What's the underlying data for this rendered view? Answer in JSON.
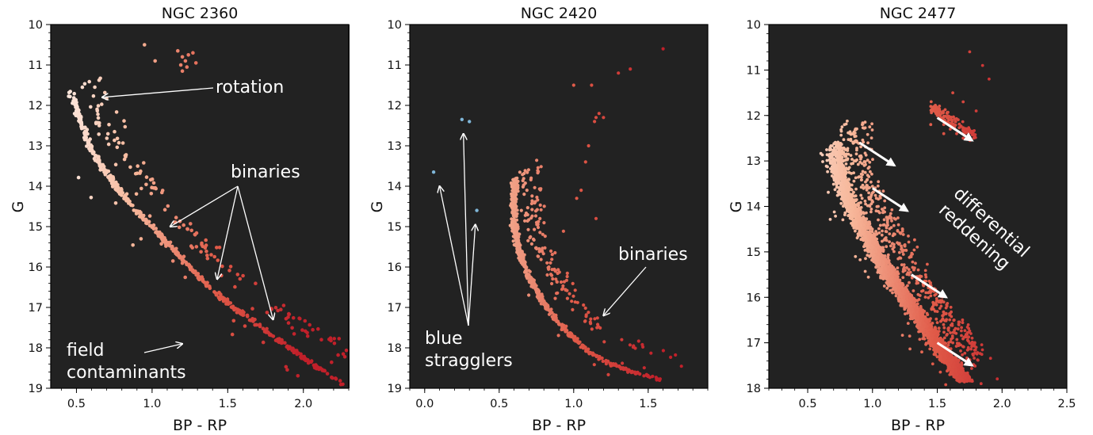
{
  "chart_data": [
    {
      "type": "scatter",
      "title": "NGC 2360",
      "xlabel": "BP - RP",
      "ylabel": "G",
      "xlim": [
        0.33,
        2.3
      ],
      "ylim": [
        19,
        10
      ],
      "xticks": [
        "0.5",
        "1.0",
        "1.5",
        "2.0"
      ],
      "yticks": [
        "10",
        "11",
        "12",
        "13",
        "14",
        "15",
        "16",
        "17",
        "18",
        "19"
      ],
      "background": "#222222",
      "colormap": [
        "#c6dbef",
        "#fdf3ee",
        "#f7b79a",
        "#e05a48",
        "#c1202a"
      ],
      "sequence_points": [
        [
          0.46,
          11.6
        ],
        [
          0.5,
          12.1
        ],
        [
          0.55,
          12.6
        ],
        [
          0.6,
          13.1
        ],
        [
          0.68,
          13.6
        ],
        [
          0.78,
          14.1
        ],
        [
          0.9,
          14.6
        ],
        [
          1.05,
          15.2
        ],
        [
          1.2,
          15.8
        ],
        [
          1.35,
          16.4
        ],
        [
          1.5,
          16.9
        ],
        [
          1.65,
          17.3
        ],
        [
          1.8,
          17.7
        ],
        [
          1.95,
          18.1
        ],
        [
          2.1,
          18.5
        ],
        [
          2.25,
          18.9
        ]
      ],
      "giant_points": [
        [
          1.17,
          10.65
        ],
        [
          1.2,
          10.8
        ],
        [
          1.22,
          10.9
        ],
        [
          1.19,
          11.0
        ],
        [
          1.23,
          11.05
        ],
        [
          1.2,
          11.15
        ],
        [
          1.24,
          10.75
        ],
        [
          1.27,
          10.7
        ],
        [
          1.29,
          10.95
        ],
        [
          0.95,
          10.5
        ],
        [
          1.02,
          10.9
        ]
      ],
      "annotations": [
        {
          "text": "rotation",
          "arrows_to": [
            [
              0.67,
              11.8
            ]
          ]
        },
        {
          "text": "binaries",
          "arrows_to": [
            [
              1.12,
              15.0
            ],
            [
              1.43,
              16.3
            ],
            [
              1.8,
              17.3
            ]
          ]
        },
        {
          "text": "field contaminants",
          "lines": [
            "field",
            "contaminants"
          ],
          "arrows_to": [
            [
              1.2,
              17.9
            ]
          ]
        }
      ]
    },
    {
      "type": "scatter",
      "title": "NGC 2420",
      "xlabel": "BP - RP",
      "ylabel": "G",
      "xlim": [
        -0.1,
        1.9
      ],
      "ylim": [
        19,
        10
      ],
      "xticks": [
        "0.0",
        "0.5",
        "1.0",
        "1.5"
      ],
      "yticks": [
        "10",
        "11",
        "12",
        "13",
        "14",
        "15",
        "16",
        "17",
        "18",
        "19"
      ],
      "background": "#222222",
      "colormap": [
        "#c6dbef",
        "#fdf3ee",
        "#f7b79a",
        "#e05a48",
        "#c1202a"
      ],
      "sequence_points": [
        [
          0.61,
          13.8
        ],
        [
          0.6,
          14.3
        ],
        [
          0.6,
          14.9
        ],
        [
          0.62,
          15.4
        ],
        [
          0.66,
          15.9
        ],
        [
          0.72,
          16.4
        ],
        [
          0.8,
          16.9
        ],
        [
          0.88,
          17.3
        ],
        [
          0.98,
          17.7
        ],
        [
          1.1,
          18.1
        ],
        [
          1.25,
          18.4
        ],
        [
          1.4,
          18.6
        ],
        [
          1.6,
          18.8
        ]
      ],
      "giant_points": [
        [
          1.0,
          11.5
        ],
        [
          1.12,
          11.5
        ],
        [
          1.15,
          12.3
        ],
        [
          1.14,
          12.4
        ],
        [
          1.17,
          12.2
        ],
        [
          1.2,
          12.3
        ],
        [
          1.1,
          13.0
        ],
        [
          1.08,
          13.4
        ],
        [
          1.05,
          14.1
        ],
        [
          1.02,
          14.3
        ],
        [
          1.15,
          14.8
        ],
        [
          1.38,
          11.1
        ],
        [
          1.3,
          11.2
        ],
        [
          1.6,
          10.6
        ]
      ],
      "extra_points": [
        [
          0.06,
          13.65
        ],
        [
          0.25,
          12.35
        ],
        [
          0.3,
          12.4
        ],
        [
          0.35,
          14.6
        ]
      ],
      "annotations": [
        {
          "text": "blue stragglers",
          "lines": [
            "blue",
            "stragglers"
          ],
          "arrows_to": [
            [
              0.1,
              14.0
            ],
            [
              0.26,
              12.7
            ],
            [
              0.34,
              14.95
            ]
          ]
        },
        {
          "text": "binaries",
          "arrows_to": [
            [
              1.2,
              17.2
            ]
          ]
        }
      ]
    },
    {
      "type": "scatter",
      "title": "NGC 2477",
      "xlabel": "BP - RP",
      "ylabel": "G",
      "xlim": [
        0.2,
        2.5
      ],
      "ylim": [
        18,
        10
      ],
      "xticks": [
        "0.5",
        "1.0",
        "1.5",
        "2.0",
        "2.5"
      ],
      "yticks": [
        "10",
        "11",
        "12",
        "13",
        "14",
        "15",
        "16",
        "17",
        "18"
      ],
      "background": "#222222",
      "colormap": [
        "#c6dbef",
        "#fdf3ee",
        "#f7b79a",
        "#e05a48",
        "#c1202a"
      ],
      "sequence_points": [
        [
          0.72,
          12.6
        ],
        [
          0.73,
          13.1
        ],
        [
          0.78,
          13.6
        ],
        [
          0.85,
          14.1
        ],
        [
          0.95,
          14.6
        ],
        [
          1.05,
          15.1
        ],
        [
          1.15,
          15.6
        ],
        [
          1.28,
          16.1
        ],
        [
          1.4,
          16.6
        ],
        [
          1.52,
          17.1
        ],
        [
          1.62,
          17.5
        ],
        [
          1.72,
          17.85
        ]
      ],
      "giant_points": [
        [
          1.45,
          11.8
        ],
        [
          1.5,
          12.0
        ],
        [
          1.55,
          12.2
        ],
        [
          1.6,
          12.3
        ],
        [
          1.65,
          12.4
        ],
        [
          1.7,
          12.5
        ],
        [
          1.45,
          12.2
        ],
        [
          1.55,
          12.4
        ],
        [
          1.62,
          11.5
        ],
        [
          1.7,
          11.7
        ],
        [
          1.8,
          11.9
        ],
        [
          1.75,
          10.6
        ],
        [
          1.85,
          10.9
        ],
        [
          1.9,
          11.2
        ]
      ],
      "annotations": [
        {
          "text": "differential reddening",
          "lines": [
            "differential",
            "reddening"
          ],
          "arrows": [
            [
              [
                1.5,
                12.05
              ],
              [
                1.77,
                12.55
              ]
            ],
            [
              [
                0.9,
                12.6
              ],
              [
                1.17,
                13.1
              ]
            ],
            [
              [
                1.0,
                13.6
              ],
              [
                1.27,
                14.1
              ]
            ],
            [
              [
                1.3,
                15.5
              ],
              [
                1.57,
                16.0
              ]
            ],
            [
              [
                1.5,
                17.0
              ],
              [
                1.77,
                17.5
              ]
            ]
          ]
        }
      ]
    }
  ]
}
